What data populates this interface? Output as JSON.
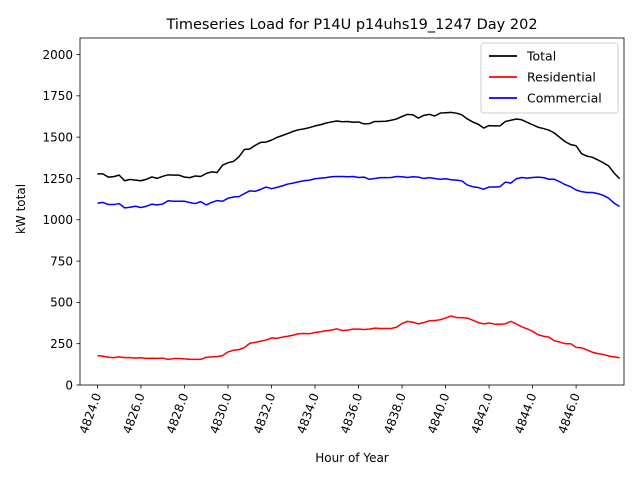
{
  "chart_data": {
    "type": "line",
    "title": "Timeseries Load for P14U p14uhs19_1247  Day 202",
    "xlabel": "Hour of Year",
    "ylabel": "kW total",
    "xlim": [
      4823.2,
      4848.2
    ],
    "ylim": [
      0,
      2100
    ],
    "x_ticks": [
      4824,
      4826,
      4828,
      4830,
      4832,
      4834,
      4836,
      4838,
      4840,
      4842,
      4844,
      4846
    ],
    "x_tick_labels": [
      "4824.0",
      "4826.0",
      "4828.0",
      "4830.0",
      "4832.0",
      "4834.0",
      "4836.0",
      "4838.0",
      "4840.0",
      "4842.0",
      "4844.0",
      "4846.0"
    ],
    "y_ticks": [
      0,
      250,
      500,
      750,
      1000,
      1250,
      1500,
      1750,
      2000
    ],
    "y_tick_labels": [
      "0",
      "250",
      "500",
      "750",
      "1000",
      "1250",
      "1500",
      "1750",
      "2000"
    ],
    "grid": false,
    "legend_position": "top-right",
    "x_start": 4824,
    "x_step": 0.25,
    "series": [
      {
        "name": "Total",
        "color": "#000000",
        "values": [
          1278,
          1278,
          1258,
          1261,
          1270,
          1236,
          1244,
          1240,
          1236,
          1245,
          1259,
          1251,
          1263,
          1272,
          1270,
          1270,
          1258,
          1255,
          1265,
          1262,
          1280,
          1290,
          1286,
          1330,
          1345,
          1353,
          1380,
          1425,
          1428,
          1450,
          1468,
          1470,
          1482,
          1498,
          1510,
          1522,
          1535,
          1545,
          1550,
          1558,
          1568,
          1575,
          1585,
          1592,
          1598,
          1593,
          1595,
          1590,
          1592,
          1580,
          1582,
          1595,
          1595,
          1596,
          1602,
          1610,
          1625,
          1638,
          1635,
          1615,
          1632,
          1638,
          1628,
          1645,
          1648,
          1650,
          1645,
          1635,
          1610,
          1592,
          1578,
          1555,
          1570,
          1568,
          1568,
          1595,
          1602,
          1610,
          1605,
          1590,
          1575,
          1560,
          1552,
          1542,
          1525,
          1498,
          1472,
          1455,
          1448,
          1400,
          1385,
          1378,
          1362,
          1345,
          1325,
          1282,
          1248
        ]
      },
      {
        "name": "Residential",
        "color": "#ff0000",
        "values": [
          178,
          175,
          168,
          166,
          170,
          166,
          166,
          163,
          165,
          161,
          162,
          161,
          163,
          155,
          160,
          160,
          158,
          155,
          155,
          155,
          168,
          170,
          172,
          178,
          200,
          210,
          214,
          226,
          252,
          258,
          265,
          272,
          285,
          282,
          290,
          295,
          302,
          310,
          312,
          310,
          318,
          322,
          328,
          332,
          340,
          330,
          332,
          338,
          338,
          336,
          338,
          344,
          342,
          342,
          342,
          350,
          372,
          385,
          380,
          370,
          378,
          388,
          390,
          395,
          405,
          418,
          408,
          408,
          405,
          392,
          378,
          370,
          375,
          368,
          368,
          370,
          385,
          370,
          352,
          340,
          325,
          305,
          295,
          290,
          268,
          260,
          250,
          250,
          228,
          225,
          212,
          198,
          190,
          185,
          175,
          170,
          165
        ]
      },
      {
        "name": "Commercial",
        "color": "#0000ff",
        "values": [
          1100,
          1105,
          1092,
          1092,
          1098,
          1072,
          1076,
          1082,
          1074,
          1082,
          1094,
          1090,
          1095,
          1115,
          1112,
          1112,
          1112,
          1104,
          1098,
          1110,
          1090,
          1105,
          1116,
          1112,
          1130,
          1138,
          1140,
          1158,
          1175,
          1172,
          1184,
          1198,
          1188,
          1196,
          1205,
          1216,
          1222,
          1230,
          1236,
          1240,
          1248,
          1252,
          1255,
          1260,
          1262,
          1262,
          1260,
          1262,
          1256,
          1258,
          1245,
          1250,
          1255,
          1255,
          1256,
          1262,
          1260,
          1256,
          1260,
          1258,
          1250,
          1255,
          1250,
          1245,
          1248,
          1242,
          1240,
          1235,
          1210,
          1200,
          1195,
          1185,
          1198,
          1198,
          1200,
          1228,
          1222,
          1248,
          1256,
          1252,
          1256,
          1258,
          1255,
          1245,
          1245,
          1230,
          1212,
          1200,
          1180,
          1170,
          1165,
          1165,
          1158,
          1148,
          1130,
          1100,
          1080
        ]
      }
    ]
  }
}
